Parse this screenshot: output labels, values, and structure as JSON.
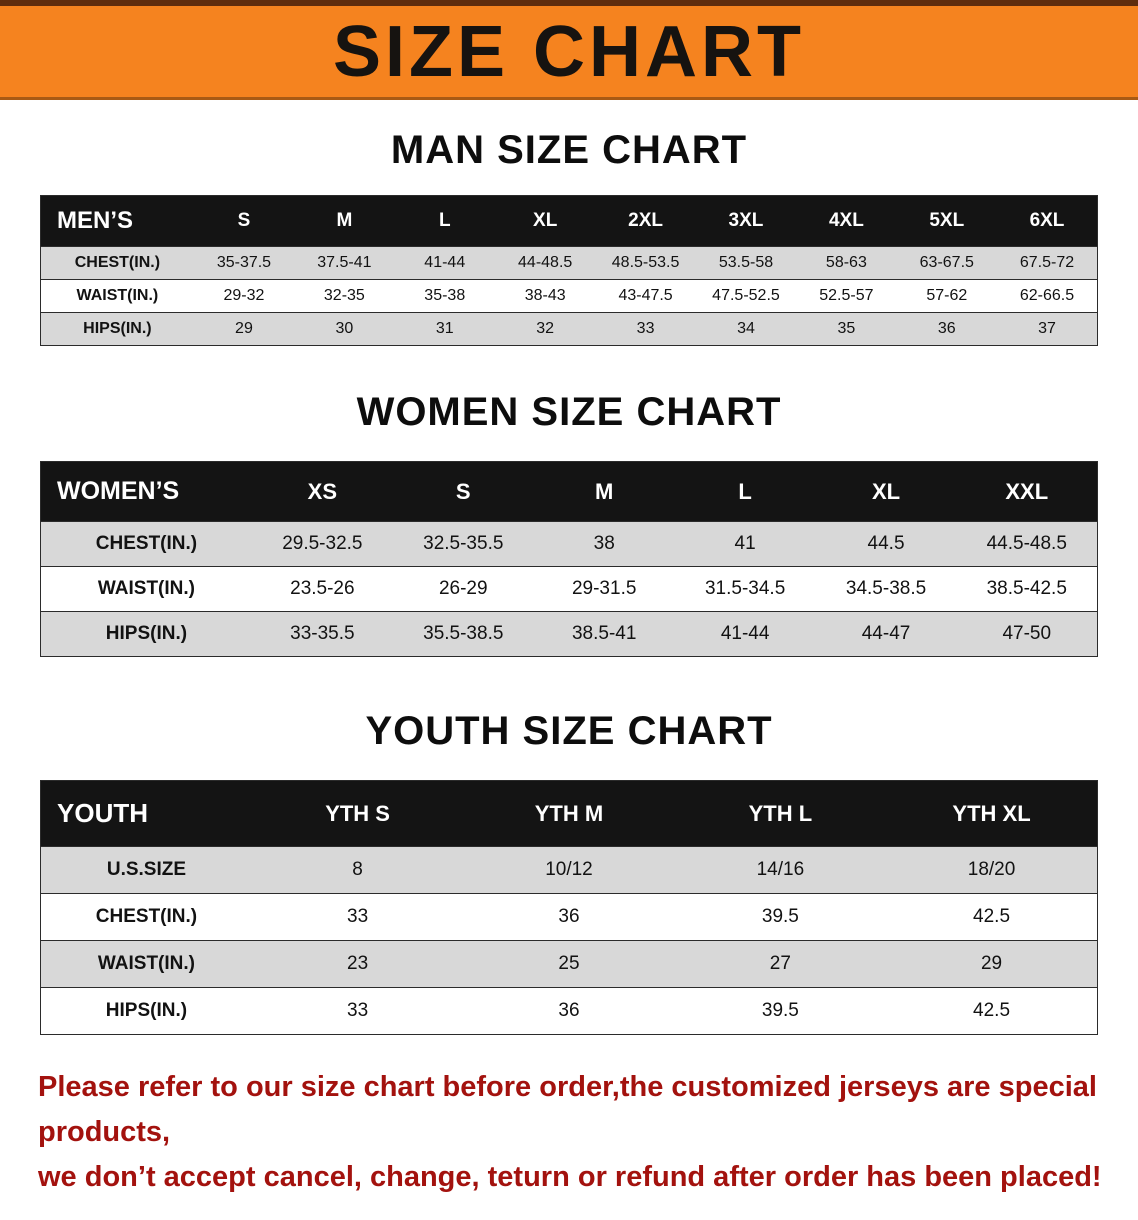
{
  "banner": {
    "title": "SIZE CHART"
  },
  "sections": [
    {
      "heading": "MAN SIZE CHART",
      "table": {
        "header": [
          "MEN’S",
          "S",
          "M",
          "L",
          "XL",
          "2XL",
          "3XL",
          "4XL",
          "5XL",
          "6XL"
        ],
        "rows": [
          {
            "label": "CHEST(IN.)",
            "values": [
              "35-37.5",
              "37.5-41",
              "41-44",
              "44-48.5",
              "48.5-53.5",
              "53.5-58",
              "58-63",
              "63-67.5",
              "67.5-72"
            ]
          },
          {
            "label": "WAIST(IN.)",
            "values": [
              "29-32",
              "32-35",
              "35-38",
              "38-43",
              "43-47.5",
              "47.5-52.5",
              "52.5-57",
              "57-62",
              "62-66.5"
            ]
          },
          {
            "label": "HIPS(IN.)",
            "values": [
              "29",
              "30",
              "31",
              "32",
              "33",
              "34",
              "35",
              "36",
              "37"
            ]
          }
        ]
      }
    },
    {
      "heading": "WOMEN SIZE CHART",
      "table": {
        "header": [
          "WOMEN’S",
          "XS",
          "S",
          "M",
          "L",
          "XL",
          "XXL"
        ],
        "rows": [
          {
            "label": "CHEST(IN.)",
            "values": [
              "29.5-32.5",
              "32.5-35.5",
              "38",
              "41",
              "44.5",
              "44.5-48.5"
            ]
          },
          {
            "label": "WAIST(IN.)",
            "values": [
              "23.5-26",
              "26-29",
              "29-31.5",
              "31.5-34.5",
              "34.5-38.5",
              "38.5-42.5"
            ]
          },
          {
            "label": "HIPS(IN.)",
            "values": [
              "33-35.5",
              "35.5-38.5",
              "38.5-41",
              "41-44",
              "44-47",
              "47-50"
            ]
          }
        ]
      }
    },
    {
      "heading": "YOUTH SIZE CHART",
      "table": {
        "header": [
          "YOUTH",
          "YTH S",
          "YTH M",
          "YTH L",
          "YTH XL"
        ],
        "rows": [
          {
            "label": "U.S.SIZE",
            "values": [
              "8",
              "10/12",
              "14/16",
              "18/20"
            ]
          },
          {
            "label": "CHEST(IN.)",
            "values": [
              "33",
              "36",
              "39.5",
              "42.5"
            ]
          },
          {
            "label": "WAIST(IN.)",
            "values": [
              "23",
              "25",
              "27",
              "29"
            ]
          },
          {
            "label": "HIPS(IN.)",
            "values": [
              "33",
              "36",
              "39.5",
              "42.5"
            ]
          }
        ]
      }
    }
  ],
  "footer": {
    "line1": "Please refer to our size chart before order,the customized jerseys are special products,",
    "line2": "we don’t accept cancel, change, teturn or refund after order has been placed!"
  },
  "colors": {
    "banner_orange": "#F5831F",
    "table_header_black": "#141414",
    "row_shade_gray": "#D8D8D8",
    "disclaimer_red": "#A3120E"
  }
}
